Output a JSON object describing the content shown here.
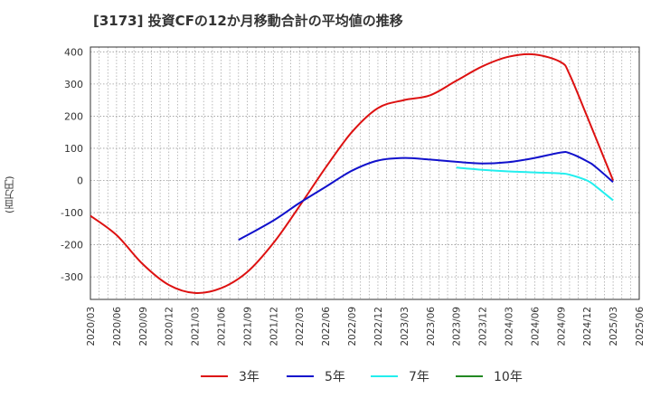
{
  "header": {
    "title": "[3173]  投資CFの12か月移動合計の平均値の推移"
  },
  "chart_data": {
    "type": "line",
    "title": "[3173]  投資CFの12か月移動合計の平均値の推移",
    "xlabel": "",
    "ylabel": "(百万円)",
    "ylim": [
      -370,
      415
    ],
    "yticks": [
      400,
      300,
      200,
      100,
      0,
      -100,
      -200,
      -300
    ],
    "xticks": [
      "2020/03",
      "2020/06",
      "2020/09",
      "2020/12",
      "2021/03",
      "2021/06",
      "2021/09",
      "2021/12",
      "2022/03",
      "2022/06",
      "2022/09",
      "2022/12",
      "2023/03",
      "2023/06",
      "2023/09",
      "2023/12",
      "2024/03",
      "2024/06",
      "2024/09",
      "2024/12",
      "2025/03",
      "2025/06"
    ],
    "grid": true,
    "legend_position": "bottom",
    "series": [
      {
        "name": "3年",
        "color": "#dd1111",
        "x": [
          "2020/03",
          "2020/06",
          "2020/09",
          "2020/12",
          "2021/03",
          "2021/06",
          "2021/09",
          "2021/12",
          "2022/03",
          "2022/06",
          "2022/09",
          "2022/12",
          "2023/03",
          "2023/06",
          "2023/09",
          "2023/12",
          "2024/03",
          "2024/06",
          "2024/09",
          "2024/10",
          "2024/12",
          "2025/03"
        ],
        "values": [
          -110,
          -170,
          -260,
          -325,
          -350,
          -335,
          -285,
          -195,
          -80,
          40,
          150,
          225,
          250,
          265,
          310,
          355,
          385,
          392,
          368,
          330,
          200,
          0
        ]
      },
      {
        "name": "5年",
        "color": "#1111cc",
        "x": [
          "2021/08",
          "2021/12",
          "2022/03",
          "2022/06",
          "2022/09",
          "2022/12",
          "2023/03",
          "2023/06",
          "2023/09",
          "2023/12",
          "2024/03",
          "2024/06",
          "2024/09",
          "2024/10",
          "2024/12",
          "2025/01",
          "2025/03"
        ],
        "values": [
          -185,
          -125,
          -70,
          -20,
          30,
          62,
          70,
          65,
          58,
          53,
          57,
          70,
          87,
          85,
          60,
          42,
          -5
        ]
      },
      {
        "name": "7年",
        "color": "#22eeee",
        "x": [
          "2023/09",
          "2023/12",
          "2024/03",
          "2024/06",
          "2024/09",
          "2024/10",
          "2024/12",
          "2025/01",
          "2025/03"
        ],
        "values": [
          40,
          33,
          28,
          25,
          22,
          18,
          0,
          -18,
          -62
        ]
      },
      {
        "name": "10年",
        "color": "#228822",
        "x": [],
        "values": []
      }
    ]
  }
}
